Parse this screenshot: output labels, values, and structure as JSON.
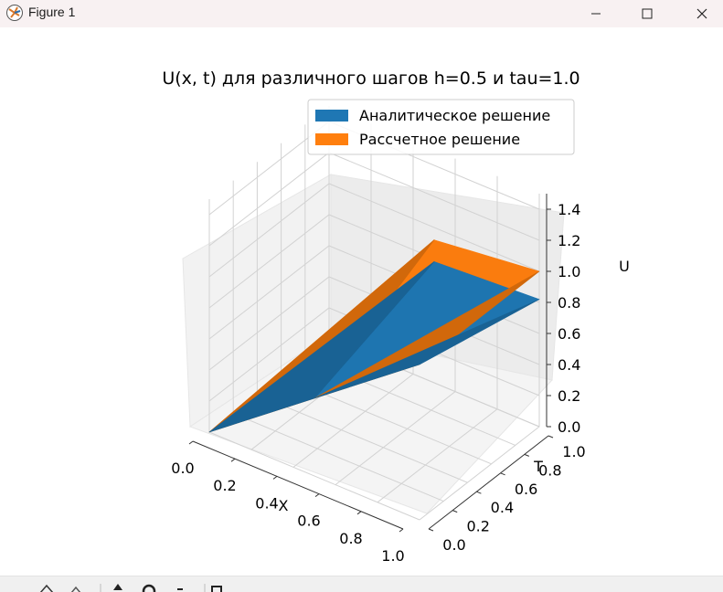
{
  "window": {
    "title": "Figure 1",
    "icons": [
      "matplotlib-logo-icon",
      "minimize-icon",
      "maximize-icon",
      "close-icon"
    ]
  },
  "toolbar": {
    "icons": [
      "home-icon",
      "back-icon",
      "forward-icon",
      "pan-icon",
      "zoom-icon",
      "configure-icon",
      "save-icon"
    ]
  },
  "chart_data": {
    "type": "surface3d",
    "title": "U(x, t) для различного шагов h=0.5 и tau=1.0",
    "xlabel": "X",
    "ylabel": "T",
    "zlabel": "U",
    "x_ticks": [
      "0.0",
      "0.2",
      "0.4",
      "0.6",
      "0.8",
      "1.0"
    ],
    "y_ticks": [
      "0.0",
      "0.2",
      "0.4",
      "0.6",
      "0.8",
      "1.0"
    ],
    "z_ticks": [
      "0.0",
      "0.2",
      "0.4",
      "0.6",
      "0.8",
      "1.0",
      "1.2",
      "1.4"
    ],
    "xlim": [
      0,
      1
    ],
    "ylim": [
      0,
      1
    ],
    "zlim": [
      0,
      1.5
    ],
    "grid": true,
    "legend_position": "top-right",
    "x": [
      0.0,
      0.5,
      1.0
    ],
    "t": [
      0.0,
      1.0
    ],
    "series": [
      {
        "name": "Аналитическое решение",
        "color": "#1f77b4",
        "z": [
          [
            0.0,
            0.5,
            1.0
          ],
          [
            0.0,
            0.78,
            0.82
          ]
        ]
      },
      {
        "name": "Рассчетное решение",
        "color": "#ff7f0e",
        "z": [
          [
            0.0,
            0.5,
            1.0
          ],
          [
            0.0,
            0.92,
            1.0
          ]
        ]
      }
    ]
  }
}
